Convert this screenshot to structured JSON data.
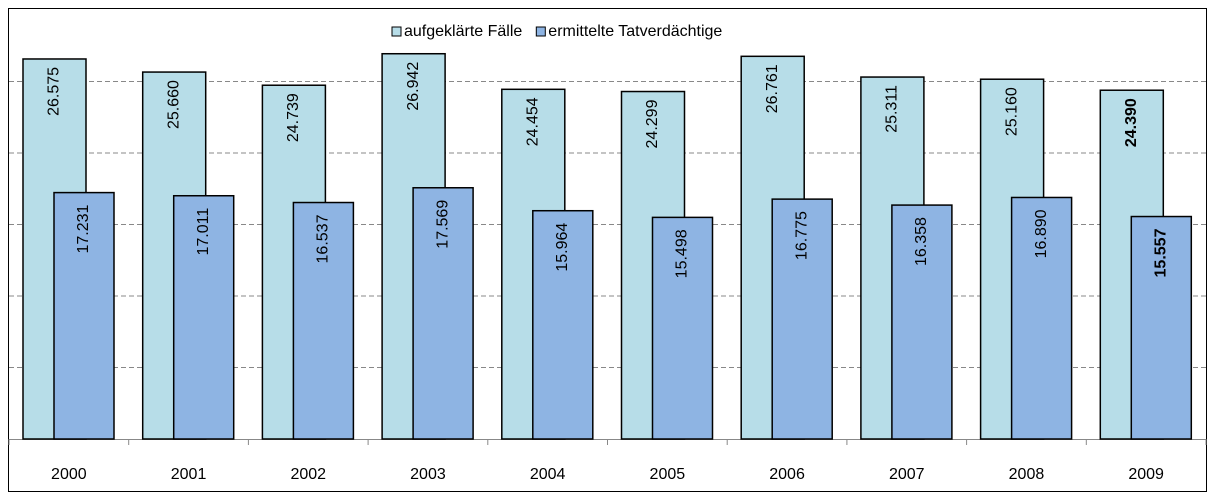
{
  "chart_data": {
    "type": "bar",
    "categories": [
      "2000",
      "2001",
      "2002",
      "2003",
      "2004",
      "2005",
      "2006",
      "2007",
      "2008",
      "2009"
    ],
    "series": [
      {
        "name": "aufgeklärte Fälle",
        "color": "#b7dde8",
        "values": [
          26575,
          25660,
          24739,
          26942,
          24454,
          24299,
          26761,
          25311,
          25160,
          24390
        ],
        "value_labels": [
          "26.575",
          "25.660",
          "24.739",
          "26.942",
          "24.454",
          "24.299",
          "26.761",
          "25.311",
          "25.160",
          "24.390"
        ]
      },
      {
        "name": "ermittelte Tatverdächtige",
        "color": "#8eb4e3",
        "values": [
          17231,
          17011,
          16537,
          17569,
          15964,
          15498,
          16775,
          16358,
          16890,
          15557
        ],
        "value_labels": [
          "17.231",
          "17.011",
          "16.537",
          "17.569",
          "15.964",
          "15.498",
          "16.775",
          "16.358",
          "16.890",
          "15.557"
        ]
      }
    ],
    "ylim": [
      0,
      30000
    ],
    "yticks": [
      0,
      5000,
      10000,
      15000,
      20000,
      25000,
      30000
    ],
    "grid": true,
    "legend": "top",
    "emphasis": {
      "category_index": 9,
      "font_weight": "bold"
    }
  }
}
